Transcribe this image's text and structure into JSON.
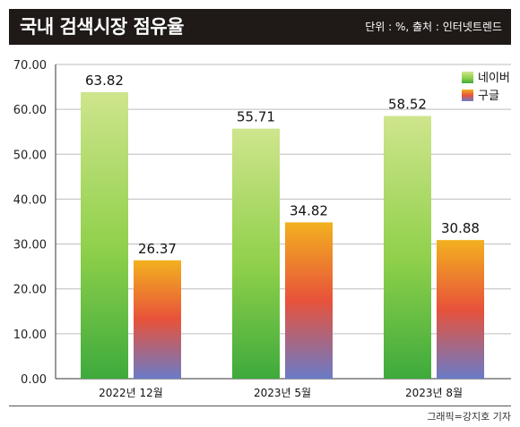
{
  "header": {
    "title": "국내 검색시장 점유율",
    "source": "단위 : %, 출처 : 인터넷트렌드"
  },
  "footer": {
    "credit": "그래픽=강지호 기자"
  },
  "chart_data": {
    "type": "bar",
    "title": "국내 검색시장 점유율",
    "categories": [
      "2022년 12월",
      "2023년 5월",
      "2023년 8월"
    ],
    "series": [
      {
        "name": "네이버",
        "values": [
          63.82,
          55.71,
          58.52
        ],
        "color": "#7cc83a"
      },
      {
        "name": "구글",
        "values": [
          26.37,
          34.82,
          30.88
        ],
        "color": "#e8523a"
      }
    ],
    "value_labels": [
      [
        "63.82",
        "55.71",
        "58.52"
      ],
      [
        "26.37",
        "34.82",
        "30.88"
      ]
    ],
    "y_ticks": [
      "0.00",
      "10.00",
      "20.00",
      "30.00",
      "40.00",
      "50.00",
      "60.00",
      "70.00"
    ],
    "ylim": [
      0,
      70
    ],
    "grid": true,
    "legend_position": "top-right"
  }
}
